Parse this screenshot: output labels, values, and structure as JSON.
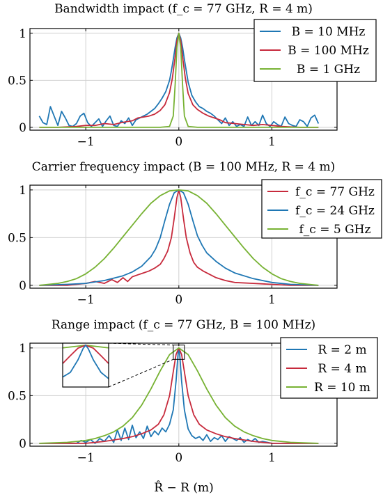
{
  "colors": {
    "blue": "#1f77b4",
    "red": "#c72a3c",
    "green": "#77b233"
  },
  "xlabel": "R̂ − R (m)",
  "chart_data": [
    {
      "type": "line",
      "title": "Bandwidth impact (f_c = 77 GHz, R = 4 m)",
      "xlim": [
        -1.6,
        1.7
      ],
      "ylim": [
        -0.03,
        1.05
      ],
      "xticks": [
        -1,
        0,
        1
      ],
      "xtick_labels": [
        "−1",
        "0",
        "1"
      ],
      "yticks": [
        0,
        0.5,
        1
      ],
      "ytick_labels": [
        "0",
        "0.5",
        "1"
      ],
      "grid": true,
      "legend_position": "top-right",
      "series": [
        {
          "name": "B = 10 MHz",
          "color": "#1f77b4",
          "x": [
            -1.5,
            -1.46,
            -1.42,
            -1.38,
            -1.34,
            -1.3,
            -1.26,
            -1.22,
            -1.18,
            -1.14,
            -1.1,
            -1.06,
            -1.02,
            -0.98,
            -0.94,
            -0.9,
            -0.86,
            -0.82,
            -0.78,
            -0.74,
            -0.7,
            -0.66,
            -0.62,
            -0.58,
            -0.54,
            -0.5,
            -0.46,
            -0.42,
            -0.38,
            -0.34,
            -0.3,
            -0.26,
            -0.22,
            -0.18,
            -0.14,
            -0.1,
            -0.08,
            -0.06,
            -0.04,
            -0.02,
            0,
            0.02,
            0.04,
            0.06,
            0.08,
            0.1,
            0.14,
            0.18,
            0.22,
            0.26,
            0.3,
            0.34,
            0.38,
            0.42,
            0.46,
            0.5,
            0.54,
            0.58,
            0.62,
            0.66,
            0.7,
            0.74,
            0.78,
            0.82,
            0.86,
            0.9,
            0.94,
            0.98,
            1.02,
            1.06,
            1.1,
            1.14,
            1.18,
            1.22,
            1.26,
            1.3,
            1.34,
            1.38,
            1.42,
            1.46,
            1.5
          ],
          "y": [
            0.12,
            0.05,
            0.03,
            0.22,
            0.12,
            0.02,
            0.17,
            0.1,
            0.02,
            0.01,
            0.04,
            0.12,
            0.15,
            0.05,
            0.01,
            0.05,
            0.09,
            0.01,
            0.07,
            0.12,
            0.02,
            0.01,
            0.07,
            0.04,
            0.1,
            0.02,
            0.08,
            0.1,
            0.12,
            0.14,
            0.17,
            0.2,
            0.25,
            0.31,
            0.38,
            0.5,
            0.6,
            0.72,
            0.85,
            0.95,
            1.0,
            0.95,
            0.85,
            0.72,
            0.6,
            0.48,
            0.34,
            0.27,
            0.22,
            0.2,
            0.17,
            0.15,
            0.12,
            0.08,
            0.04,
            0.1,
            0.02,
            0.06,
            0.01,
            0.03,
            0.01,
            0.11,
            0.02,
            0.06,
            0.02,
            0.13,
            0.04,
            0.01,
            0.06,
            0.03,
            0.01,
            0.11,
            0.04,
            0.02,
            0.01,
            0.08,
            0.06,
            0.01,
            0.1,
            0.13,
            0.04
          ]
        },
        {
          "name": "B = 100 MHz",
          "color": "#c72a3c",
          "x": [
            -1.5,
            -1.3,
            -1.1,
            -1.0,
            -0.9,
            -0.8,
            -0.7,
            -0.62,
            -0.56,
            -0.5,
            -0.44,
            -0.38,
            -0.32,
            -0.26,
            -0.2,
            -0.15,
            -0.1,
            -0.07,
            -0.04,
            -0.02,
            0,
            0.02,
            0.04,
            0.07,
            0.1,
            0.15,
            0.2,
            0.26,
            0.32,
            0.38,
            0.44,
            0.5,
            0.6,
            0.7,
            0.8,
            0.9,
            1.0,
            1.1,
            1.3,
            1.5
          ],
          "y": [
            0.0,
            0.0,
            0.01,
            0.02,
            0.02,
            0.04,
            0.03,
            0.05,
            0.06,
            0.07,
            0.1,
            0.11,
            0.12,
            0.14,
            0.18,
            0.24,
            0.37,
            0.52,
            0.75,
            0.92,
            1.0,
            0.92,
            0.75,
            0.52,
            0.36,
            0.24,
            0.19,
            0.15,
            0.12,
            0.1,
            0.08,
            0.05,
            0.04,
            0.03,
            0.02,
            0.03,
            0.02,
            0.01,
            0.0,
            0.0
          ]
        },
        {
          "name": "B = 1 GHz",
          "color": "#77b233",
          "x": [
            -1.5,
            -0.2,
            -0.1,
            -0.06,
            -0.04,
            -0.02,
            0,
            0.02,
            0.04,
            0.06,
            0.1,
            0.2,
            1.5
          ],
          "y": [
            0,
            0.0,
            0.01,
            0.12,
            0.45,
            0.85,
            1.0,
            0.85,
            0.45,
            0.12,
            0.01,
            0.0,
            0
          ]
        }
      ]
    },
    {
      "type": "line",
      "title": "Carrier frequency impact (B = 100 MHz, R = 4 m)",
      "xlim": [
        -1.6,
        1.7
      ],
      "ylim": [
        -0.03,
        1.05
      ],
      "xticks": [
        -1,
        0,
        1
      ],
      "xtick_labels": [
        "−1",
        "0",
        "1"
      ],
      "yticks": [
        0,
        0.5,
        1
      ],
      "ytick_labels": [
        "0",
        "0.5",
        "1"
      ],
      "grid": true,
      "legend_position": "top-right",
      "series": [
        {
          "name": "f_c = 77 GHz",
          "color": "#c72a3c",
          "x": [
            -1.5,
            -1.2,
            -1.0,
            -0.9,
            -0.8,
            -0.72,
            -0.66,
            -0.6,
            -0.55,
            -0.5,
            -0.44,
            -0.38,
            -0.32,
            -0.26,
            -0.2,
            -0.16,
            -0.12,
            -0.08,
            -0.05,
            -0.02,
            0,
            0.02,
            0.05,
            0.08,
            0.12,
            0.16,
            0.2,
            0.26,
            0.32,
            0.4,
            0.5,
            0.6,
            0.8,
            1.0,
            1.2,
            1.5
          ],
          "y": [
            0,
            0.0,
            0.02,
            0.04,
            0.02,
            0.06,
            0.03,
            0.08,
            0.04,
            0.09,
            0.11,
            0.13,
            0.15,
            0.18,
            0.22,
            0.28,
            0.36,
            0.5,
            0.7,
            0.92,
            1.0,
            0.92,
            0.7,
            0.5,
            0.34,
            0.24,
            0.19,
            0.15,
            0.12,
            0.08,
            0.05,
            0.03,
            0.02,
            0.01,
            0.0,
            0
          ]
        },
        {
          "name": "f_c = 24 GHz",
          "color": "#1f77b4",
          "x": [
            -1.5,
            -1.2,
            -1.0,
            -0.8,
            -0.6,
            -0.5,
            -0.4,
            -0.3,
            -0.25,
            -0.2,
            -0.15,
            -0.1,
            -0.05,
            0,
            0.05,
            0.1,
            0.15,
            0.2,
            0.25,
            0.3,
            0.4,
            0.5,
            0.6,
            0.8,
            1.0,
            1.2,
            1.5
          ],
          "y": [
            0,
            0.01,
            0.02,
            0.05,
            0.1,
            0.14,
            0.2,
            0.3,
            0.38,
            0.5,
            0.68,
            0.85,
            0.97,
            1.0,
            0.97,
            0.85,
            0.68,
            0.52,
            0.42,
            0.34,
            0.25,
            0.18,
            0.13,
            0.07,
            0.03,
            0.01,
            0
          ]
        },
        {
          "name": "f_c = 5 GHz",
          "color": "#77b233",
          "x": [
            -1.5,
            -1.3,
            -1.2,
            -1.1,
            -1.0,
            -0.9,
            -0.8,
            -0.7,
            -0.6,
            -0.5,
            -0.4,
            -0.3,
            -0.2,
            -0.1,
            0,
            0.1,
            0.2,
            0.3,
            0.4,
            0.5,
            0.6,
            0.7,
            0.8,
            0.9,
            1.0,
            1.1,
            1.2,
            1.3,
            1.5
          ],
          "y": [
            0.0,
            0.02,
            0.04,
            0.07,
            0.12,
            0.19,
            0.28,
            0.39,
            0.51,
            0.63,
            0.75,
            0.86,
            0.94,
            0.99,
            1.0,
            0.99,
            0.94,
            0.86,
            0.75,
            0.63,
            0.51,
            0.39,
            0.28,
            0.19,
            0.12,
            0.07,
            0.04,
            0.02,
            0.0
          ]
        }
      ]
    },
    {
      "type": "line",
      "title": "Range impact (f_c = 77 GHz, B = 100 MHz)",
      "xlim": [
        -1.6,
        1.7
      ],
      "ylim": [
        -0.03,
        1.05
      ],
      "xticks": [
        -1,
        0,
        1
      ],
      "xtick_labels": [
        "−1",
        "0",
        "1"
      ],
      "yticks": [
        0,
        0.5,
        1
      ],
      "ytick_labels": [
        "0",
        "0.5",
        "1"
      ],
      "grid": true,
      "legend_position": "top-right",
      "inset": true,
      "series": [
        {
          "name": "R = 2 m",
          "color": "#1f77b4",
          "x": [
            -1.5,
            -1.1,
            -1.05,
            -1.0,
            -0.95,
            -0.9,
            -0.85,
            -0.8,
            -0.75,
            -0.7,
            -0.66,
            -0.62,
            -0.58,
            -0.54,
            -0.5,
            -0.46,
            -0.42,
            -0.38,
            -0.34,
            -0.3,
            -0.26,
            -0.22,
            -0.18,
            -0.14,
            -0.1,
            -0.06,
            -0.03,
            -0.01,
            0,
            0.01,
            0.03,
            0.06,
            0.1,
            0.14,
            0.18,
            0.22,
            0.26,
            0.3,
            0.34,
            0.38,
            0.42,
            0.46,
            0.5,
            0.54,
            0.58,
            0.62,
            0.66,
            0.7,
            0.74,
            0.78,
            0.82,
            0.86,
            0.9,
            1.0,
            1.2,
            1.5
          ],
          "y": [
            0,
            0.0,
            0.03,
            0.01,
            0.04,
            0.0,
            0.05,
            0.02,
            0.08,
            0.01,
            0.14,
            0.03,
            0.16,
            0.04,
            0.19,
            0.06,
            0.12,
            0.05,
            0.18,
            0.07,
            0.13,
            0.09,
            0.16,
            0.12,
            0.2,
            0.35,
            0.65,
            0.92,
            1.0,
            0.92,
            0.65,
            0.35,
            0.15,
            0.08,
            0.05,
            0.07,
            0.03,
            0.09,
            0.02,
            0.06,
            0.04,
            0.08,
            0.02,
            0.07,
            0.05,
            0.03,
            0.06,
            0.01,
            0.04,
            0.02,
            0.05,
            0.01,
            0.02,
            0.0,
            0.0,
            0
          ]
        },
        {
          "name": "R = 4 m",
          "color": "#c72a3c",
          "x": [
            -1.5,
            -1.0,
            -0.8,
            -0.6,
            -0.5,
            -0.4,
            -0.3,
            -0.22,
            -0.16,
            -0.1,
            -0.06,
            -0.03,
            0,
            0.03,
            0.06,
            0.1,
            0.16,
            0.22,
            0.3,
            0.4,
            0.5,
            0.6,
            0.8,
            1.0,
            1.5
          ],
          "y": [
            0,
            0.0,
            0.02,
            0.05,
            0.07,
            0.1,
            0.14,
            0.2,
            0.3,
            0.5,
            0.75,
            0.93,
            1.0,
            0.93,
            0.75,
            0.5,
            0.3,
            0.2,
            0.14,
            0.1,
            0.07,
            0.05,
            0.02,
            0.0,
            0
          ]
        },
        {
          "name": "R = 10 m",
          "color": "#77b233",
          "x": [
            -1.5,
            -1.2,
            -1.0,
            -0.9,
            -0.8,
            -0.7,
            -0.6,
            -0.5,
            -0.4,
            -0.3,
            -0.2,
            -0.1,
            0,
            0.1,
            0.2,
            0.3,
            0.4,
            0.5,
            0.6,
            0.7,
            0.8,
            0.9,
            1.0,
            1.2,
            1.5
          ],
          "y": [
            0.0,
            0.01,
            0.03,
            0.05,
            0.08,
            0.12,
            0.18,
            0.27,
            0.4,
            0.57,
            0.76,
            0.93,
            1.0,
            0.93,
            0.76,
            0.57,
            0.4,
            0.27,
            0.18,
            0.12,
            0.08,
            0.05,
            0.03,
            0.01,
            0.0
          ]
        }
      ]
    }
  ]
}
